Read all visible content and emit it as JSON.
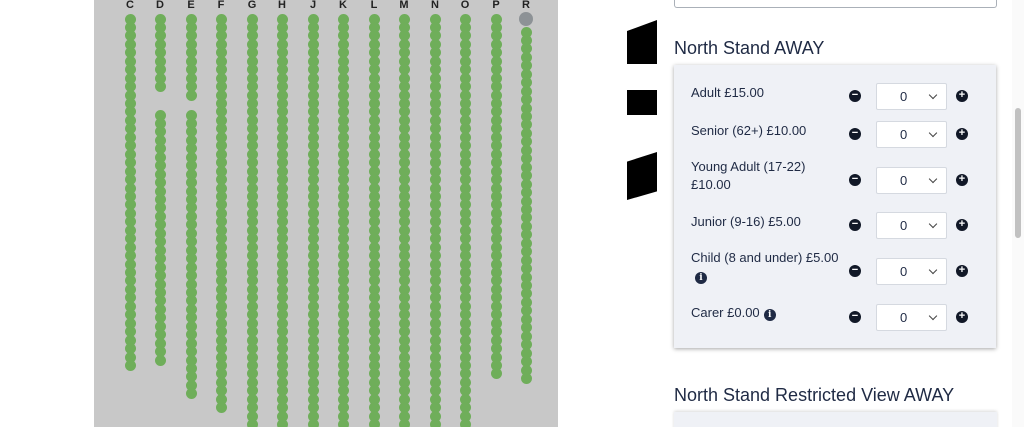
{
  "seat_map": {
    "columns": [
      "C",
      "D",
      "E",
      "F",
      "G",
      "H",
      "J",
      "K",
      "L",
      "M",
      "N",
      "O",
      "P",
      "R"
    ],
    "seat_color": "#6fae5a",
    "unavailable_color": "#8d9296"
  },
  "sections": [
    {
      "title": "North Stand AWAY",
      "tickets": [
        {
          "label": "Adult  £15.00",
          "quantity": "0",
          "info": false
        },
        {
          "label": "Senior (62+)  £10.00",
          "quantity": "0",
          "info": false
        },
        {
          "label": "Young Adult (17-22) £10.00",
          "quantity": "0",
          "info": false
        },
        {
          "label": "Junior (9-16)  £5.00",
          "quantity": "0",
          "info": false
        },
        {
          "label": "Child (8 and under) £5.00",
          "quantity": "0",
          "info": true
        },
        {
          "label": "Carer  £0.00",
          "quantity": "0",
          "info": true
        }
      ]
    },
    {
      "title": "North Stand Restricted View AWAY"
    }
  ],
  "icons": {
    "minus": "minus-circle-icon",
    "plus": "plus-circle-icon",
    "info": "info-icon",
    "chevron": "chevron-down-icon"
  },
  "glyphs": {
    "minus": "−",
    "plus": "+",
    "info": "i"
  }
}
